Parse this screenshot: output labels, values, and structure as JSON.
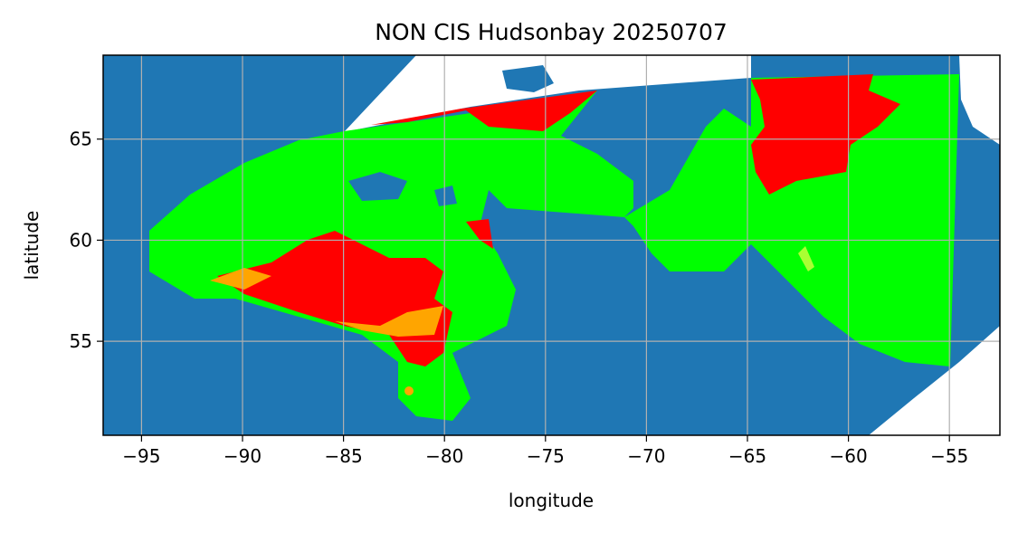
{
  "chart_data": {
    "type": "map",
    "title": "NON CIS Hudsonbay 20250707",
    "x_label": "longitude",
    "y_label": "latitude",
    "xlim": [
      -96.9,
      -52.5
    ],
    "ylim": [
      50.35,
      69.15
    ],
    "xticks": [
      {
        "value": -95,
        "label": "−95"
      },
      {
        "value": -90,
        "label": "−90"
      },
      {
        "value": -85,
        "label": "−85"
      },
      {
        "value": -80,
        "label": "−80"
      },
      {
        "value": -75,
        "label": "−75"
      },
      {
        "value": -70,
        "label": "−70"
      },
      {
        "value": -65,
        "label": "−65"
      },
      {
        "value": -60,
        "label": "−60"
      },
      {
        "value": -55,
        "label": "−55"
      }
    ],
    "yticks": [
      55,
      60,
      65
    ],
    "grid": true
  }
}
